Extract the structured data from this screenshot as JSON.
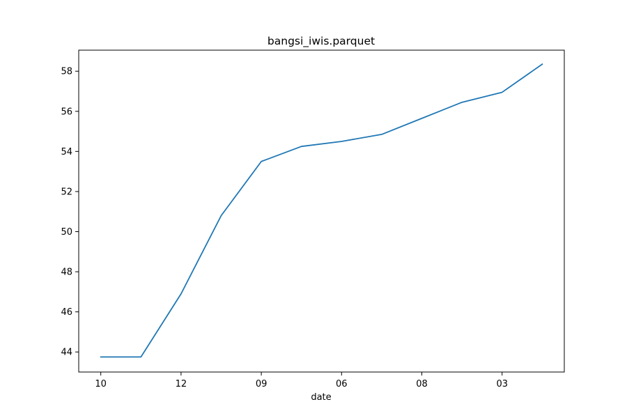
{
  "chart_data": {
    "type": "line",
    "title": "bangsi_iwis.parquet",
    "xlabel": "date",
    "ylabel": "",
    "x": [
      0,
      1,
      2,
      3,
      4,
      5,
      6,
      7,
      8,
      9,
      10,
      11
    ],
    "x_tick_positions": [
      0,
      2,
      4,
      6,
      8,
      10
    ],
    "x_tick_labels": [
      "10",
      "12",
      "09",
      "06",
      "08",
      "03"
    ],
    "xlim": [
      -0.55,
      11.55
    ],
    "ylim": [
      43.0,
      59.05
    ],
    "y_ticks": [
      44,
      46,
      48,
      50,
      52,
      54,
      56,
      58
    ],
    "grid": false,
    "legend": "none",
    "series": [
      {
        "color": "#1f77b4",
        "values": [
          43.75,
          43.75,
          46.9,
          50.8,
          53.5,
          54.25,
          54.5,
          54.85,
          55.65,
          56.45,
          56.95,
          58.35
        ]
      }
    ]
  }
}
